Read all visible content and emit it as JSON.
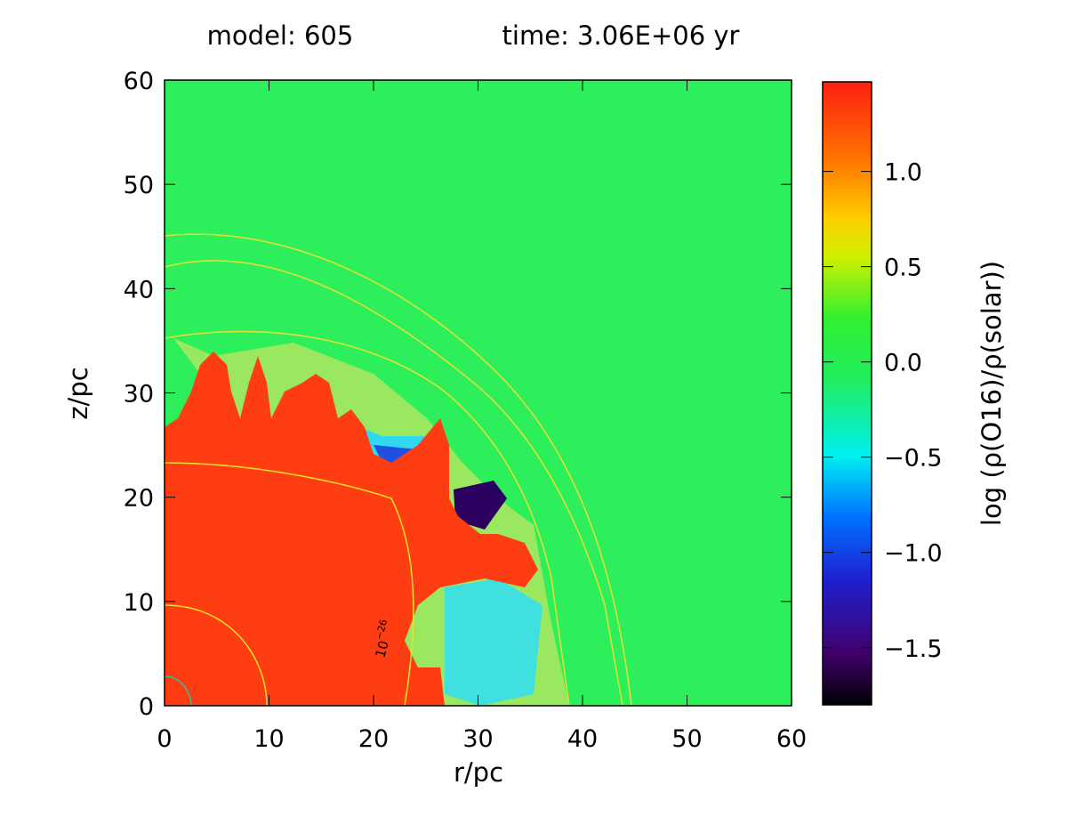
{
  "chart_data": {
    "type": "heatmap",
    "title_left": "model: 605",
    "title_right": "time: 3.06E+06 yr",
    "xlabel": "r/pc",
    "ylabel": "z/pc",
    "xlim": [
      0,
      60
    ],
    "xticks": [
      0,
      10,
      20,
      30,
      40,
      50,
      60
    ],
    "ylim": [
      0,
      60
    ],
    "yticks": [
      0,
      10,
      20,
      30,
      40,
      50,
      60
    ],
    "colorbar": {
      "label": "log (ρ(O16)/ρ(solar))",
      "clim": [
        -1.8,
        1.47
      ],
      "ticks": [
        {
          "value": 1.0,
          "label": "1.0"
        },
        {
          "value": 0.5,
          "label": "0.5"
        },
        {
          "value": 0.0,
          "label": "0.0"
        },
        {
          "value": -0.5,
          "label": "−0.5"
        },
        {
          "value": -1.0,
          "label": "−1.0"
        },
        {
          "value": -1.5,
          "label": "−1.5"
        }
      ]
    },
    "annotation": {
      "base": "10",
      "exponent": "−26"
    }
  }
}
